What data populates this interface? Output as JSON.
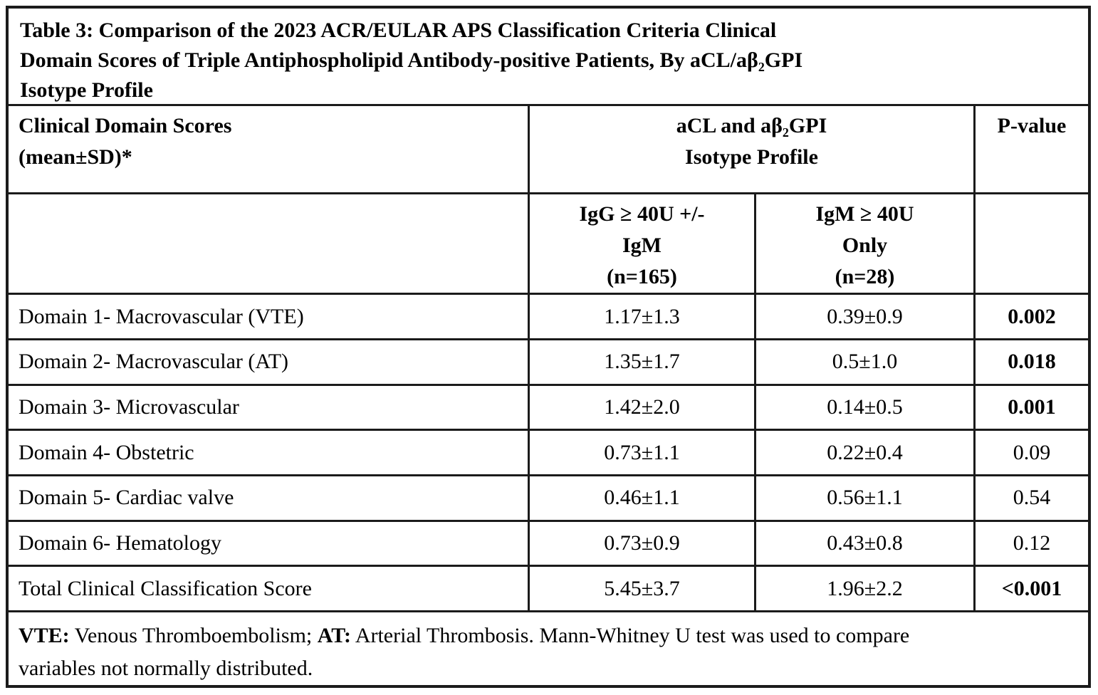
{
  "title": "Table 3: Comparison of the 2023 ACR/EULAR APS Classification Criteria Clinical\nDomain Scores of Triple Antiphospholipid Antibody-positive Patients, By aCL/aβ₂GPI\nIsotype Profile",
  "header": {
    "row_label": "Clinical Domain Scores\n(mean±SD)*",
    "group_label": "aCL and aβ₂GPI\nIsotype Profile",
    "pvalue_label": "P-value",
    "igg_label": "IgG ≥ 40U +/-\nIgM\n(n=165)",
    "igm_label": "IgM ≥ 40U\nOnly\n(n=28)"
  },
  "rows": [
    {
      "label": "Domain 1- Macrovascular (VTE)",
      "igg": "1.17±1.3",
      "igm": "0.39±0.9",
      "p": "0.002"
    },
    {
      "label": "Domain 2- Macrovascular (AT)",
      "igg": "1.35±1.7",
      "igm": "0.5±1.0",
      "p": "0.018"
    },
    {
      "label": "Domain 3- Microvascular",
      "igg": "1.42±2.0",
      "igm": "0.14±0.5",
      "p": "0.001"
    },
    {
      "label": "Domain 4- Obstetric",
      "igg": "0.73±1.1",
      "igm": "0.22±0.4",
      "p": "0.09"
    },
    {
      "label": "Domain 5- Cardiac valve",
      "igg": "0.46±1.1",
      "igm": "0.56±1.1",
      "p": "0.54"
    },
    {
      "label": "Domain 6- Hematology",
      "igg": "0.73±0.9",
      "igm": "0.43±0.8",
      "p": "0.12"
    },
    {
      "label": "Total Clinical Classification Score",
      "igg": "5.45±3.7",
      "igm": "1.96±2.2",
      "p": "<0.001"
    }
  ],
  "footnote": {
    "abbr1": "VTE:",
    "text1": " Venous Thromboembolism; ",
    "abbr2": "AT:",
    "text2": " Arterial Thrombosis. Mann-Whitney U test was used to compare\nvariables not normally distributed."
  }
}
